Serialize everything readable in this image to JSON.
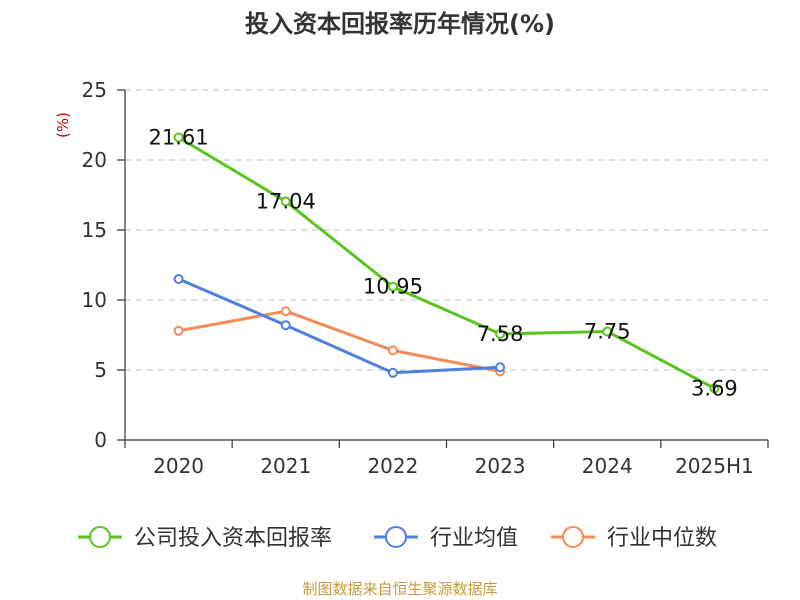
{
  "title": "投入资本回报率历年情况(%)",
  "source": "制图数据来自恒生聚源数据库",
  "chart_data": {
    "type": "line",
    "title": "投入资本回报率历年情况(%)",
    "ylabel": "(%)",
    "xlabel": "",
    "categories": [
      "2020",
      "2021",
      "2022",
      "2023",
      "2024",
      "2025H1"
    ],
    "ylim": [
      0,
      25
    ],
    "yticks": [
      0,
      5,
      10,
      15,
      20,
      25
    ],
    "grid": true,
    "legend_position": "bottom",
    "series": [
      {
        "name": "公司投入资本回报率",
        "color": "#5ac41f",
        "values": [
          21.61,
          17.04,
          10.95,
          7.58,
          7.75,
          3.69
        ],
        "labels": [
          "21.61",
          "17.04",
          "10.95",
          "7.58",
          "7.75",
          "3.69"
        ]
      },
      {
        "name": "行业均值",
        "color": "#4f7fe0",
        "values": [
          11.5,
          8.2,
          4.8,
          5.2,
          null,
          null
        ]
      },
      {
        "name": "行业中位数",
        "color": "#f48a57",
        "values": [
          7.8,
          9.2,
          6.4,
          4.9,
          null,
          null
        ]
      }
    ]
  }
}
